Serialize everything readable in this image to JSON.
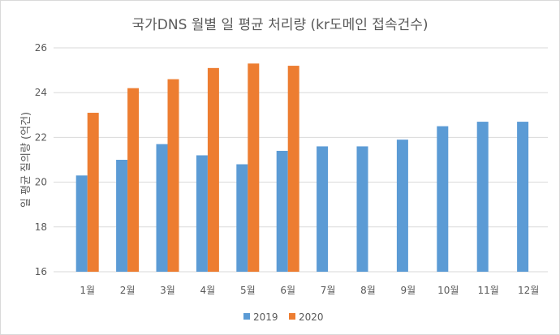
{
  "chart_data": {
    "type": "bar",
    "title": "국가DNS 월별 일 평균 처리량 (kr도메인 접속건수)",
    "xlabel": "",
    "ylabel": "일 평균 질의량 (억건)",
    "ylim": [
      16,
      26
    ],
    "yticks": [
      16,
      18,
      20,
      22,
      24,
      26
    ],
    "grid": true,
    "legend": "bottom",
    "categories": [
      "1월",
      "2월",
      "3월",
      "4월",
      "5월",
      "6월",
      "7월",
      "8월",
      "9월",
      "10월",
      "11월",
      "12월"
    ],
    "series": [
      {
        "name": "2019",
        "color": "#5b9bd5",
        "values": [
          20.3,
          21.0,
          21.7,
          21.2,
          20.8,
          21.4,
          21.6,
          21.6,
          21.9,
          22.5,
          22.7,
          22.7
        ]
      },
      {
        "name": "2020",
        "color": "#ed7d31",
        "values": [
          23.1,
          24.2,
          24.6,
          25.1,
          25.3,
          25.2,
          null,
          null,
          null,
          null,
          null,
          null
        ]
      }
    ]
  }
}
